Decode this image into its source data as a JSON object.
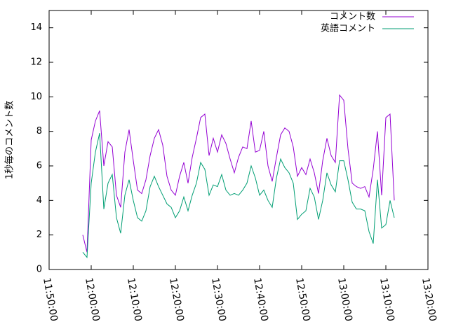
{
  "chart_data": {
    "type": "line",
    "y_label": "1秒毎のコメント数",
    "x": [
      "11:58:00",
      "11:59:00",
      "12:00:00",
      "12:01:00",
      "12:02:00",
      "12:03:00",
      "12:04:00",
      "12:05:00",
      "12:06:00",
      "12:07:00",
      "12:08:00",
      "12:09:00",
      "12:10:00",
      "12:11:00",
      "12:12:00",
      "12:13:00",
      "12:14:00",
      "12:15:00",
      "12:16:00",
      "12:17:00",
      "12:18:00",
      "12:19:00",
      "12:20:00",
      "12:21:00",
      "12:22:00",
      "12:23:00",
      "12:24:00",
      "12:25:00",
      "12:26:00",
      "12:27:00",
      "12:28:00",
      "12:29:00",
      "12:30:00",
      "12:31:00",
      "12:32:00",
      "12:33:00",
      "12:34:00",
      "12:35:00",
      "12:36:00",
      "12:37:00",
      "12:38:00",
      "12:39:00",
      "12:40:00",
      "12:41:00",
      "12:42:00",
      "12:43:00",
      "12:44:00",
      "12:45:00",
      "12:46:00",
      "12:47:00",
      "12:48:00",
      "12:49:00",
      "12:50:00",
      "12:51:00",
      "12:52:00",
      "12:53:00",
      "12:54:00",
      "12:55:00",
      "12:56:00",
      "12:57:00",
      "12:58:00",
      "12:59:00",
      "13:00:00",
      "13:01:00",
      "13:02:00",
      "13:03:00",
      "13:04:00",
      "13:05:00",
      "13:06:00",
      "13:07:00",
      "13:08:00",
      "13:09:00",
      "13:10:00",
      "13:11:00",
      "13:12:00"
    ],
    "series": [
      {
        "name": "コメント数",
        "color": "#9400d3",
        "values": [
          2.0,
          1.0,
          7.5,
          8.6,
          9.2,
          6.0,
          7.4,
          7.1,
          4.3,
          3.6,
          6.8,
          8.1,
          6.3,
          4.6,
          4.4,
          5.2,
          6.6,
          7.6,
          8.1,
          7.2,
          5.4,
          4.6,
          4.3,
          5.4,
          6.2,
          5.0,
          6.5,
          7.6,
          8.8,
          9.0,
          6.6,
          7.6,
          6.8,
          7.8,
          7.3,
          6.4,
          5.6,
          6.5,
          7.1,
          7.0,
          8.6,
          6.8,
          6.9,
          8.0,
          6.0,
          5.1,
          6.5,
          7.8,
          8.2,
          8.0,
          7.1,
          5.4,
          5.9,
          5.5,
          6.4,
          5.6,
          4.4,
          6.3,
          7.6,
          6.6,
          6.2,
          10.1,
          9.8,
          7.0,
          5.0,
          4.8,
          4.7,
          4.8,
          4.2,
          5.8,
          8.0,
          4.3,
          8.8,
          9.0,
          4.0
        ]
      },
      {
        "name": "英語コメント",
        "color": "#009e73",
        "values": [
          1.0,
          0.7,
          5.0,
          6.8,
          7.9,
          3.5,
          5.0,
          5.5,
          3.0,
          2.1,
          4.3,
          5.2,
          4.0,
          3.0,
          2.8,
          3.4,
          4.8,
          5.4,
          4.8,
          4.3,
          3.8,
          3.6,
          3.0,
          3.4,
          4.2,
          3.4,
          4.3,
          5.0,
          6.2,
          5.8,
          4.3,
          4.9,
          4.8,
          5.5,
          4.6,
          4.3,
          4.4,
          4.3,
          4.6,
          5.0,
          6.0,
          5.3,
          4.3,
          4.6,
          4.0,
          3.6,
          5.3,
          6.4,
          5.9,
          5.6,
          5.0,
          2.9,
          3.2,
          3.4,
          4.7,
          4.2,
          2.9,
          4.0,
          5.6,
          4.9,
          4.5,
          6.3,
          6.3,
          5.2,
          3.9,
          3.5,
          3.5,
          3.4,
          2.2,
          1.5,
          5.2,
          2.4,
          2.6,
          4.0,
          3.0
        ]
      }
    ],
    "xlim": [
      "11:50:00",
      "13:20:00"
    ],
    "xticks": [
      "11:50:00",
      "12:00:00",
      "12:10:00",
      "12:20:00",
      "12:30:00",
      "12:40:00",
      "12:50:00",
      "13:00:00",
      "13:10:00",
      "13:20:00"
    ],
    "ylim": [
      0,
      15
    ],
    "yticks": [
      0,
      2,
      4,
      6,
      8,
      10,
      12,
      14
    ],
    "grid": false,
    "legend": "top-right"
  }
}
